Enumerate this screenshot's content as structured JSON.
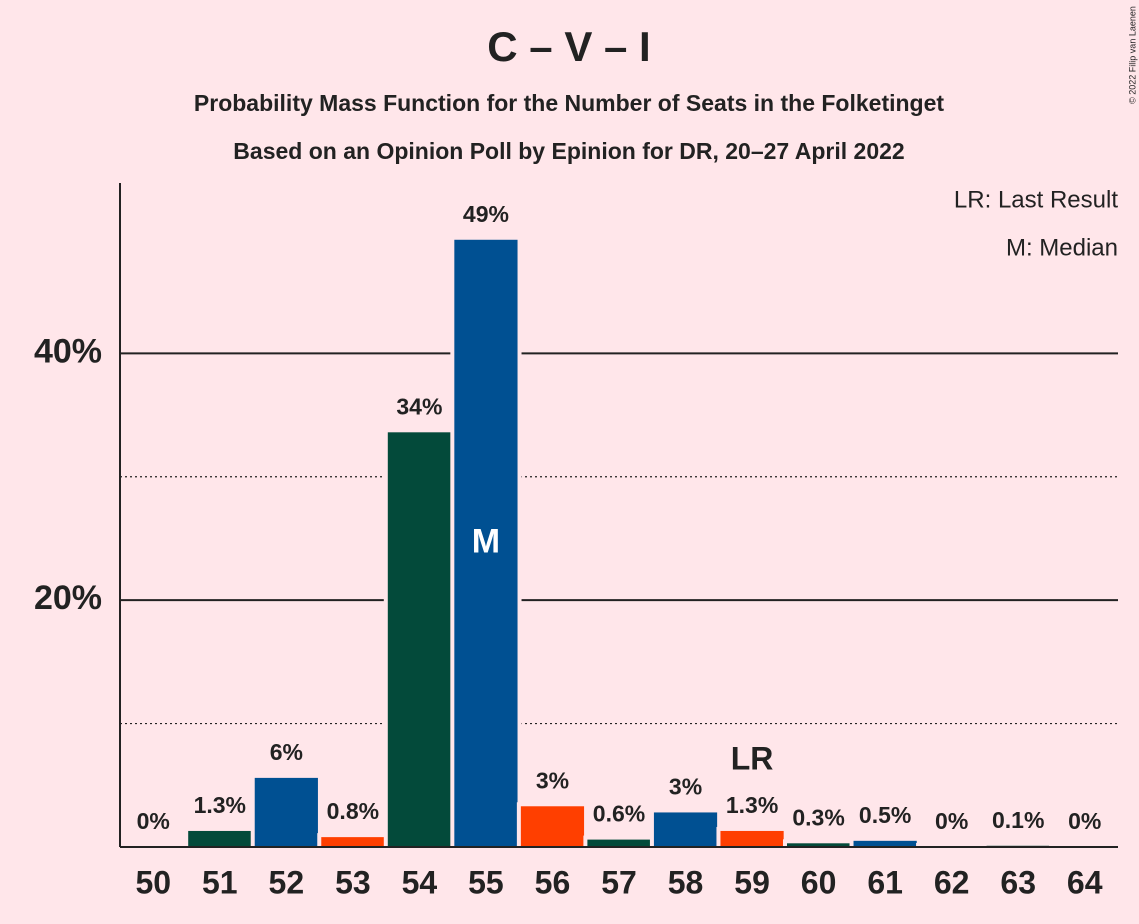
{
  "chart_data": {
    "type": "bar",
    "title": "C – V – I",
    "subtitle": "Probability Mass Function for the Number of Seats in the Folketinget",
    "subtitle2": "Based on an Opinion Poll by Epinion for DR, 20–27 April 2022",
    "copyright": "© 2022 Filip van Laenen",
    "legend": [
      "LR: Last Result",
      "M: Median"
    ],
    "median_label": "M",
    "median": "55",
    "last_result_label": "LR",
    "last_result": "59",
    "categories": [
      "50",
      "51",
      "52",
      "53",
      "54",
      "55",
      "56",
      "57",
      "58",
      "59",
      "60",
      "61",
      "62",
      "63",
      "64"
    ],
    "values": [
      0,
      1.3,
      5.6,
      0.8,
      33.6,
      49.2,
      3.3,
      0.6,
      2.8,
      1.3,
      0.3,
      0.5,
      0,
      0.1,
      0
    ],
    "value_labels": [
      "0%",
      "1.3%",
      "6%",
      "0.8%",
      "34%",
      "49%",
      "3%",
      "0.6%",
      "3%",
      "1.3%",
      "0.3%",
      "0.5%",
      "0%",
      "0.1%",
      "0%"
    ],
    "colors": [
      "#005092",
      "#034a3a",
      "#005092",
      "#ff3f00",
      "#034a3a",
      "#005092",
      "#ff3f00",
      "#034a3a",
      "#005092",
      "#ff3f00",
      "#034a3a",
      "#005092",
      "#ff3f00",
      "#034a3a",
      "#005092"
    ],
    "ylim": [
      0,
      53.8
    ],
    "yticks": [
      {
        "value": 20,
        "label": "20%"
      },
      {
        "value": 40,
        "label": "40%"
      }
    ],
    "minor_yticks": [
      10,
      30
    ],
    "grid": true
  }
}
